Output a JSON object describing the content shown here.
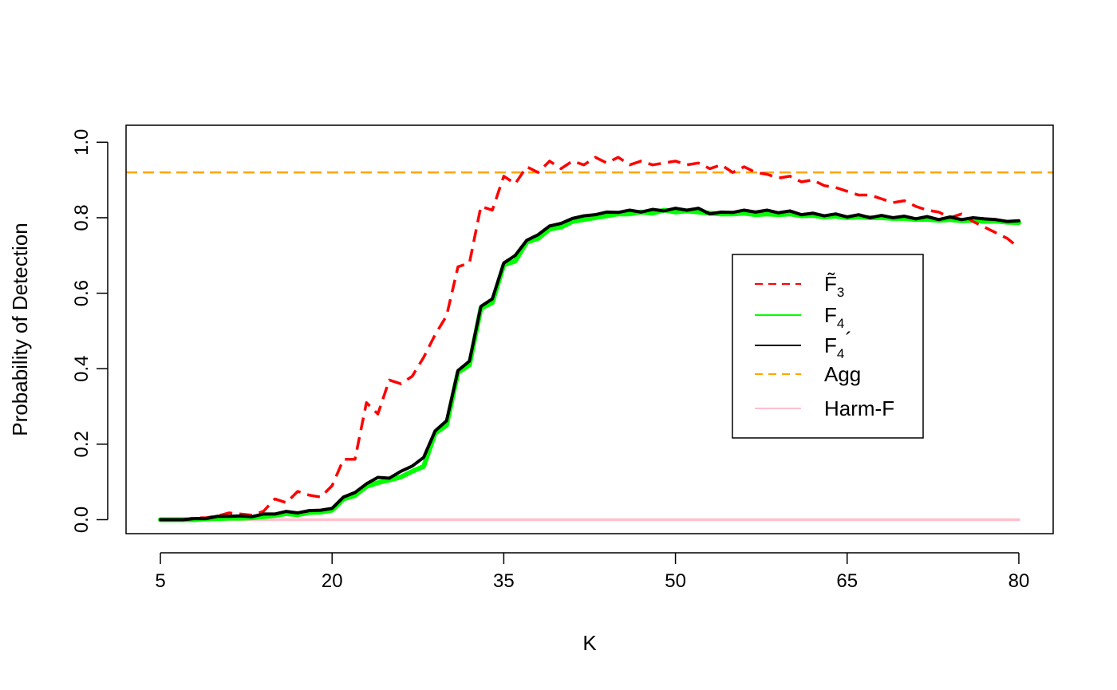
{
  "chart_data": {
    "type": "line",
    "title": "",
    "xlabel": "K",
    "ylabel": "Probability of Detection",
    "xlim": [
      2,
      83
    ],
    "ylim": [
      -0.037,
      1.045
    ],
    "xticks": [
      5,
      20,
      35,
      50,
      65,
      80
    ],
    "yticks": [
      0.0,
      0.2,
      0.4,
      0.6,
      0.8,
      1.0
    ],
    "xtick_labels": [
      "5",
      "20",
      "35",
      "50",
      "65",
      "80"
    ],
    "ytick_labels": [
      "0.0",
      "0.2",
      "0.4",
      "0.6",
      "0.8",
      "1.0"
    ],
    "grid": false,
    "legend_position": "center-right",
    "x": [
      5,
      6,
      7,
      8,
      9,
      10,
      11,
      12,
      13,
      14,
      15,
      16,
      17,
      18,
      19,
      20,
      21,
      22,
      23,
      24,
      25,
      26,
      27,
      28,
      29,
      30,
      31,
      32,
      33,
      34,
      35,
      36,
      37,
      38,
      39,
      40,
      41,
      42,
      43,
      44,
      45,
      46,
      47,
      48,
      49,
      50,
      51,
      52,
      53,
      54,
      55,
      56,
      57,
      58,
      59,
      60,
      61,
      62,
      63,
      64,
      65,
      66,
      67,
      68,
      69,
      70,
      71,
      72,
      73,
      74,
      75,
      76,
      77,
      78,
      79,
      80
    ],
    "series": [
      {
        "name": "F3 tilde",
        "legend_main": "F̃",
        "legend_sub": "3",
        "color": "#ff0000",
        "style": "dashed",
        "values": [
          0.0,
          0.0,
          0.0,
          0.005,
          0.005,
          0.01,
          0.018,
          0.015,
          0.012,
          0.022,
          0.055,
          0.045,
          0.075,
          0.065,
          0.06,
          0.09,
          0.16,
          0.16,
          0.31,
          0.28,
          0.37,
          0.36,
          0.38,
          0.43,
          0.49,
          0.54,
          0.67,
          0.68,
          0.83,
          0.82,
          0.91,
          0.89,
          0.935,
          0.92,
          0.95,
          0.93,
          0.95,
          0.94,
          0.96,
          0.945,
          0.96,
          0.94,
          0.95,
          0.94,
          0.945,
          0.95,
          0.94,
          0.945,
          0.93,
          0.94,
          0.92,
          0.935,
          0.92,
          0.915,
          0.905,
          0.91,
          0.895,
          0.9,
          0.885,
          0.88,
          0.87,
          0.86,
          0.86,
          0.85,
          0.84,
          0.845,
          0.83,
          0.82,
          0.815,
          0.8,
          0.81,
          0.79,
          0.775,
          0.76,
          0.745,
          0.72
        ]
      },
      {
        "name": "F4",
        "legend_main": "F",
        "legend_sub": "4",
        "color": "#00ff00",
        "style": "solid",
        "values": [
          0.0,
          0.0,
          0.0,
          0.0,
          0.002,
          0.003,
          0.004,
          0.004,
          0.005,
          0.008,
          0.011,
          0.016,
          0.013,
          0.019,
          0.02,
          0.025,
          0.055,
          0.064,
          0.088,
          0.098,
          0.105,
          0.113,
          0.128,
          0.141,
          0.229,
          0.25,
          0.39,
          0.41,
          0.56,
          0.575,
          0.675,
          0.685,
          0.735,
          0.745,
          0.77,
          0.775,
          0.79,
          0.795,
          0.8,
          0.805,
          0.81,
          0.81,
          0.815,
          0.812,
          0.82,
          0.815,
          0.818,
          0.815,
          0.812,
          0.81,
          0.81,
          0.812,
          0.808,
          0.81,
          0.808,
          0.81,
          0.805,
          0.806,
          0.802,
          0.804,
          0.8,
          0.802,
          0.8,
          0.8,
          0.798,
          0.798,
          0.795,
          0.796,
          0.793,
          0.795,
          0.792,
          0.793,
          0.79,
          0.791,
          0.788,
          0.787
        ]
      },
      {
        "name": "F4 prime",
        "legend_main": "F",
        "legend_sub": "4",
        "legend_prime": "´",
        "color": "#000000",
        "style": "solid",
        "values": [
          0.0,
          0.0,
          0.0,
          0.003,
          0.003,
          0.009,
          0.009,
          0.01,
          0.008,
          0.015,
          0.015,
          0.022,
          0.018,
          0.024,
          0.025,
          0.03,
          0.06,
          0.072,
          0.095,
          0.112,
          0.11,
          0.128,
          0.142,
          0.165,
          0.235,
          0.262,
          0.395,
          0.42,
          0.565,
          0.585,
          0.68,
          0.7,
          0.74,
          0.755,
          0.778,
          0.785,
          0.798,
          0.805,
          0.808,
          0.815,
          0.814,
          0.82,
          0.815,
          0.822,
          0.818,
          0.825,
          0.82,
          0.825,
          0.81,
          0.815,
          0.814,
          0.82,
          0.815,
          0.82,
          0.813,
          0.818,
          0.808,
          0.812,
          0.805,
          0.81,
          0.802,
          0.808,
          0.8,
          0.806,
          0.8,
          0.804,
          0.797,
          0.803,
          0.795,
          0.802,
          0.795,
          0.8,
          0.797,
          0.795,
          0.79,
          0.792
        ]
      },
      {
        "name": "Agg",
        "legend_main": "Agg",
        "color": "#ffa500",
        "style": "dashed",
        "horizontal": true,
        "constant": 0.92
      },
      {
        "name": "Harm-F",
        "legend_main": "Harm-F",
        "color": "#ffc0cb",
        "style": "solid",
        "constant": 0.0
      }
    ]
  }
}
